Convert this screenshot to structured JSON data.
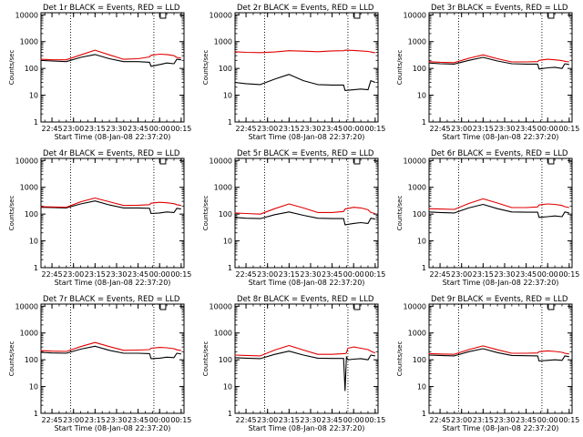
{
  "colors": {
    "events": "#000000",
    "lld": "#e00000",
    "frame": "#000000"
  },
  "common": {
    "xlabel": "Start Time (08-Jan-08 22:37:20)",
    "ylabel": "Counts/sec",
    "x_ticks": [
      "22:45",
      "23:00",
      "23:15",
      "23:30",
      "23:45",
      "00:00",
      "00:15"
    ],
    "y_ticks": [
      "1",
      "10",
      "100",
      "1000",
      "10000"
    ]
  },
  "chart_data": [
    {
      "type": "line",
      "title": "Det 1r BLACK = Events, RED = LLD",
      "yscale": "log",
      "ylim": [
        1,
        12000
      ],
      "xlim": [
        "22:37:20",
        "00:17:00"
      ],
      "vlines": [
        "22:58",
        "23:56"
      ],
      "series": [
        {
          "name": "Events",
          "x": [
            "22:37",
            "22:45",
            "22:55",
            "23:05",
            "23:15",
            "23:25",
            "23:35",
            "23:45",
            "23:53",
            "23:54",
            "00:00",
            "00:05",
            "00:10",
            "00:12",
            "00:15"
          ],
          "y": [
            200,
            190,
            180,
            260,
            330,
            230,
            180,
            180,
            170,
            120,
            140,
            160,
            150,
            220,
            210
          ]
        },
        {
          "name": "LLD",
          "x": [
            "22:37",
            "22:45",
            "22:55",
            "23:05",
            "23:15",
            "23:25",
            "23:35",
            "23:45",
            "23:53",
            "23:54",
            "00:00",
            "00:05",
            "00:10",
            "00:12",
            "00:15"
          ],
          "y": [
            220,
            210,
            210,
            320,
            480,
            320,
            220,
            230,
            270,
            310,
            340,
            330,
            300,
            260,
            240
          ]
        }
      ]
    },
    {
      "type": "line",
      "title": "Det 2r BLACK = Events, RED = LLD",
      "yscale": "log",
      "ylim": [
        1,
        12000
      ],
      "xlim": [
        "22:37:20",
        "00:17:00"
      ],
      "vlines": [
        "22:58",
        "23:56"
      ],
      "series": [
        {
          "name": "Events",
          "x": [
            "22:37",
            "22:45",
            "22:55",
            "23:05",
            "23:15",
            "23:25",
            "23:35",
            "23:45",
            "23:53",
            "23:54",
            "00:00",
            "00:05",
            "00:10",
            "00:12",
            "00:15"
          ],
          "y": [
            30,
            27,
            25,
            40,
            60,
            35,
            25,
            24,
            24,
            15,
            16,
            17,
            16,
            35,
            30
          ]
        },
        {
          "name": "LLD",
          "x": [
            "22:37",
            "22:45",
            "22:55",
            "23:05",
            "23:15",
            "23:25",
            "23:35",
            "23:45",
            "23:53",
            "23:54",
            "00:00",
            "00:05",
            "00:10",
            "00:12",
            "00:15"
          ],
          "y": [
            420,
            400,
            390,
            410,
            460,
            440,
            420,
            450,
            460,
            480,
            470,
            450,
            430,
            410,
            380
          ]
        }
      ]
    },
    {
      "type": "line",
      "title": "Det 3r BLACK = Events, RED = LLD",
      "yscale": "log",
      "ylim": [
        1,
        12000
      ],
      "xlim": [
        "22:37:20",
        "00:17:00"
      ],
      "vlines": [
        "22:58",
        "23:56"
      ],
      "series": [
        {
          "name": "Events",
          "x": [
            "22:37",
            "22:45",
            "22:55",
            "23:05",
            "23:15",
            "23:25",
            "23:35",
            "23:45",
            "23:53",
            "23:54",
            "00:00",
            "00:05",
            "00:10",
            "00:12",
            "00:15"
          ],
          "y": [
            160,
            150,
            145,
            200,
            260,
            190,
            150,
            145,
            145,
            95,
            105,
            110,
            100,
            150,
            140
          ]
        },
        {
          "name": "LLD",
          "x": [
            "22:37",
            "22:45",
            "22:55",
            "23:05",
            "23:15",
            "23:25",
            "23:35",
            "23:45",
            "23:53",
            "23:54",
            "00:00",
            "00:05",
            "00:10",
            "00:12",
            "00:15"
          ],
          "y": [
            180,
            170,
            165,
            240,
            320,
            230,
            175,
            175,
            180,
            200,
            220,
            210,
            195,
            185,
            175
          ]
        }
      ]
    },
    {
      "type": "line",
      "title": "Det 4r BLACK = Events, RED = LLD",
      "yscale": "log",
      "ylim": [
        1,
        12000
      ],
      "xlim": [
        "22:37:20",
        "00:17:00"
      ],
      "vlines": [
        "22:58",
        "23:56"
      ],
      "series": [
        {
          "name": "Events",
          "x": [
            "22:37",
            "22:45",
            "22:55",
            "23:05",
            "23:15",
            "23:25",
            "23:35",
            "23:45",
            "23:53",
            "23:54",
            "00:00",
            "00:05",
            "00:10",
            "00:12",
            "00:15"
          ],
          "y": [
            180,
            175,
            170,
            240,
            310,
            220,
            170,
            170,
            165,
            105,
            110,
            120,
            115,
            165,
            155
          ]
        },
        {
          "name": "LLD",
          "x": [
            "22:37",
            "22:45",
            "22:55",
            "23:05",
            "23:15",
            "23:25",
            "23:35",
            "23:45",
            "23:53",
            "23:54",
            "00:00",
            "00:05",
            "00:10",
            "00:12",
            "00:15"
          ],
          "y": [
            190,
            185,
            180,
            290,
            400,
            290,
            210,
            215,
            225,
            255,
            275,
            265,
            245,
            225,
            210
          ]
        }
      ]
    },
    {
      "type": "line",
      "title": "Det 5r BLACK = Events, RED = LLD",
      "yscale": "log",
      "ylim": [
        1,
        12000
      ],
      "xlim": [
        "22:37:20",
        "00:17:00"
      ],
      "vlines": [
        "22:58",
        "23:56"
      ],
      "series": [
        {
          "name": "Events",
          "x": [
            "22:37",
            "22:45",
            "22:55",
            "23:05",
            "23:15",
            "23:25",
            "23:35",
            "23:45",
            "23:53",
            "23:54",
            "00:00",
            "00:05",
            "00:10",
            "00:12",
            "00:15"
          ],
          "y": [
            75,
            70,
            68,
            95,
            120,
            90,
            70,
            68,
            68,
            40,
            45,
            48,
            45,
            70,
            65
          ]
        },
        {
          "name": "LLD",
          "x": [
            "22:37",
            "22:45",
            "22:55",
            "23:05",
            "23:15",
            "23:25",
            "23:35",
            "23:45",
            "23:53",
            "23:54",
            "00:00",
            "00:05",
            "00:10",
            "00:12",
            "00:15"
          ],
          "y": [
            110,
            105,
            100,
            160,
            240,
            170,
            115,
            115,
            125,
            155,
            180,
            170,
            145,
            115,
            105
          ]
        }
      ]
    },
    {
      "type": "line",
      "title": "Det 6r BLACK = Events, RED = LLD",
      "yscale": "log",
      "ylim": [
        1,
        12000
      ],
      "xlim": [
        "22:37:20",
        "00:17:00"
      ],
      "vlines": [
        "22:58",
        "23:56"
      ],
      "series": [
        {
          "name": "Events",
          "x": [
            "22:37",
            "22:45",
            "22:55",
            "23:05",
            "23:15",
            "23:25",
            "23:35",
            "23:45",
            "23:53",
            "23:54",
            "00:00",
            "00:05",
            "00:10",
            "00:12",
            "00:15"
          ],
          "y": [
            120,
            115,
            110,
            170,
            230,
            160,
            120,
            118,
            118,
            75,
            80,
            85,
            80,
            120,
            110
          ]
        },
        {
          "name": "LLD",
          "x": [
            "22:37",
            "22:45",
            "22:55",
            "23:05",
            "23:15",
            "23:25",
            "23:35",
            "23:45",
            "23:53",
            "23:54",
            "00:00",
            "00:05",
            "00:10",
            "00:12",
            "00:15"
          ],
          "y": [
            160,
            155,
            150,
            250,
            370,
            260,
            175,
            175,
            185,
            220,
            240,
            230,
            210,
            190,
            175
          ]
        }
      ]
    },
    {
      "type": "line",
      "title": "Det 7r BLACK = Events, RED = LLD",
      "yscale": "log",
      "ylim": [
        1,
        12000
      ],
      "xlim": [
        "22:37:20",
        "00:17:00"
      ],
      "vlines": [
        "22:58",
        "23:56"
      ],
      "series": [
        {
          "name": "Events",
          "x": [
            "22:37",
            "22:45",
            "22:55",
            "23:05",
            "23:15",
            "23:25",
            "23:35",
            "23:45",
            "23:53",
            "23:54",
            "00:00",
            "00:05",
            "00:10",
            "00:12",
            "00:15"
          ],
          "y": [
            190,
            180,
            175,
            250,
            320,
            225,
            175,
            175,
            170,
            110,
            115,
            125,
            120,
            175,
            165
          ]
        },
        {
          "name": "LLD",
          "x": [
            "22:37",
            "22:45",
            "22:55",
            "23:05",
            "23:15",
            "23:25",
            "23:35",
            "23:45",
            "23:53",
            "23:54",
            "00:00",
            "00:05",
            "00:10",
            "00:12",
            "00:15"
          ],
          "y": [
            220,
            210,
            205,
            310,
            440,
            310,
            225,
            230,
            240,
            270,
            290,
            280,
            260,
            235,
            220
          ]
        }
      ]
    },
    {
      "type": "line",
      "title": "Det 8r BLACK = Events, RED = LLD",
      "yscale": "log",
      "ylim": [
        1,
        12000
      ],
      "xlim": [
        "22:37:20",
        "00:17:00"
      ],
      "vlines": [
        "22:58",
        "23:56"
      ],
      "series": [
        {
          "name": "Events",
          "x": [
            "22:37",
            "22:45",
            "22:55",
            "23:05",
            "23:15",
            "23:25",
            "23:35",
            "23:45",
            "23:53",
            "23:54",
            "23:55",
            "23:56",
            "00:00",
            "00:05",
            "00:10",
            "00:12",
            "00:15"
          ],
          "y": [
            120,
            115,
            110,
            160,
            210,
            150,
            115,
            112,
            112,
            7,
            130,
            100,
            105,
            110,
            100,
            150,
            140
          ]
        },
        {
          "name": "LLD",
          "x": [
            "22:37",
            "22:45",
            "22:55",
            "23:05",
            "23:15",
            "23:25",
            "23:35",
            "23:45",
            "23:53",
            "23:54",
            "23:55",
            "23:56",
            "00:00",
            "00:05",
            "00:10",
            "00:12",
            "00:15"
          ],
          "y": [
            150,
            145,
            140,
            230,
            340,
            230,
            160,
            160,
            170,
            170,
            180,
            270,
            300,
            270,
            240,
            210,
            180
          ]
        }
      ]
    },
    {
      "type": "line",
      "title": "Det 9r BLACK = Events, RED = LLD",
      "yscale": "log",
      "ylim": [
        1,
        12000
      ],
      "xlim": [
        "22:37:20",
        "00:17:00"
      ],
      "vlines": [
        "22:58",
        "23:56"
      ],
      "series": [
        {
          "name": "Events",
          "x": [
            "22:37",
            "22:45",
            "22:55",
            "23:05",
            "23:15",
            "23:25",
            "23:35",
            "23:45",
            "23:53",
            "23:54",
            "00:00",
            "00:05",
            "00:10",
            "00:12",
            "00:15"
          ],
          "y": [
            150,
            145,
            140,
            200,
            260,
            185,
            145,
            142,
            140,
            90,
            95,
            100,
            95,
            140,
            130
          ]
        },
        {
          "name": "LLD",
          "x": [
            "22:37",
            "22:45",
            "22:55",
            "23:05",
            "23:15",
            "23:25",
            "23:35",
            "23:45",
            "23:53",
            "23:54",
            "00:00",
            "00:05",
            "00:10",
            "00:12",
            "00:15"
          ],
          "y": [
            170,
            165,
            160,
            240,
            330,
            235,
            175,
            175,
            180,
            200,
            215,
            205,
            190,
            175,
            165
          ]
        }
      ]
    }
  ]
}
